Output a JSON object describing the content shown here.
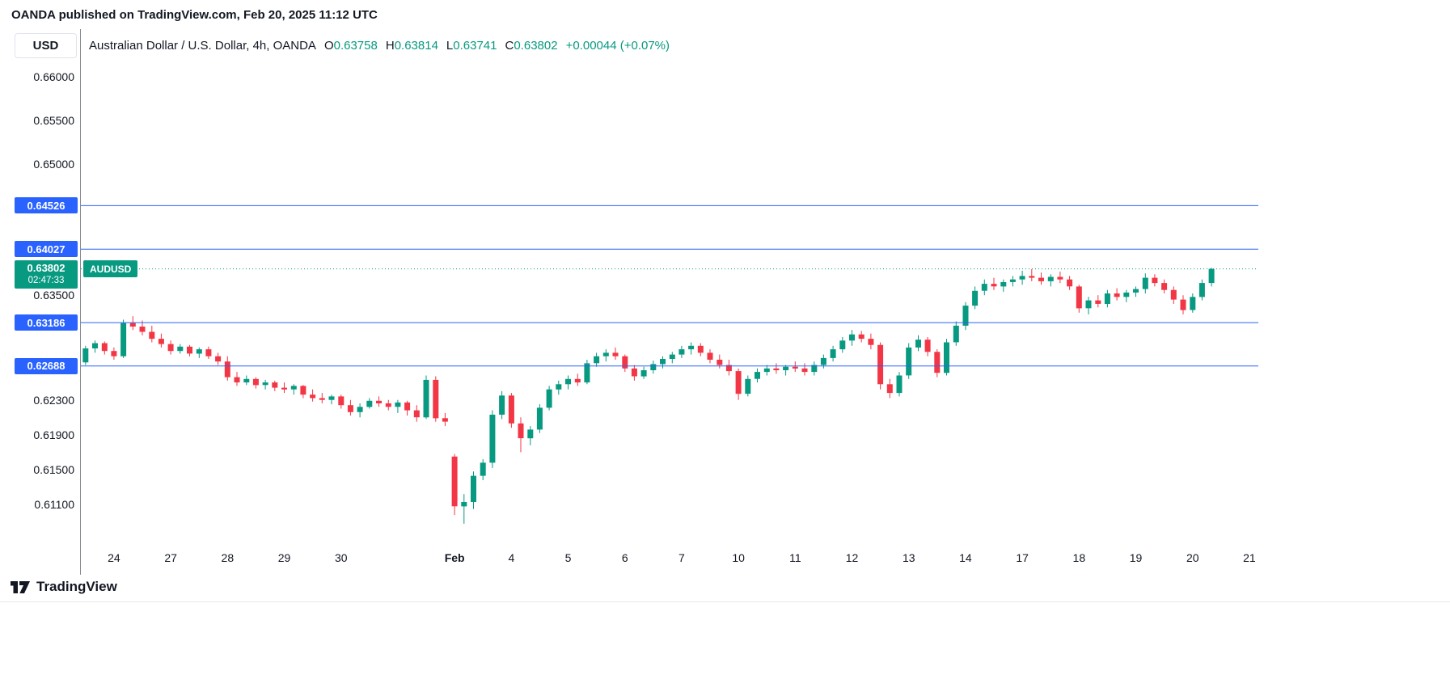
{
  "header": {
    "attribution": "OANDA published on TradingView.com, Feb 20, 2025 11:12 UTC"
  },
  "toolbar": {
    "currency_button_label": "USD"
  },
  "legend": {
    "title": "Australian Dollar / U.S. Dollar, 4h, OANDA",
    "ohlc": [
      {
        "label": "O",
        "value": "0.63758"
      },
      {
        "label": "H",
        "value": "0.63814"
      },
      {
        "label": "L",
        "value": "0.63741"
      },
      {
        "label": "C",
        "value": "0.63802"
      }
    ],
    "change": "+0.00044 (+0.07%)"
  },
  "price_axis": {
    "visible_ticks": [
      "0.66000",
      "0.65500",
      "0.65000",
      "0.63500",
      "0.62300",
      "0.61900",
      "0.61500",
      "0.61100"
    ],
    "level_badges": [
      "0.64526",
      "0.64027",
      "0.63186",
      "0.62688"
    ],
    "current": {
      "price": "0.63802",
      "countdown": "02:47:33",
      "symbol_tag": "AUDUSD"
    }
  },
  "footer": {
    "brand": "TradingView"
  },
  "colors": {
    "background": "#ffffff",
    "up": "#089981",
    "down": "#F23645",
    "level_line": "#2962FF",
    "text": "#131722",
    "axis_line": "#87898f",
    "divider": "#e7e8ea"
  },
  "chart_data": {
    "type": "candlestick",
    "title": "Australian Dollar / U.S. Dollar, 4h, OANDA",
    "symbol": "AUDUSD",
    "timeframe": "4h",
    "provider": "OANDA",
    "ohlc_current": {
      "open": 0.63758,
      "high": 0.63814,
      "low": 0.63741,
      "close": 0.63802,
      "change": 0.00044,
      "change_pct": 0.07
    },
    "current_price": 0.63802,
    "horizontal_levels": [
      0.64526,
      0.64027,
      0.63186,
      0.62688
    ],
    "price_range": [
      0.6062,
      0.6655
    ],
    "slot_width": 11.7,
    "x_labels": [
      {
        "text": "24",
        "slot": 3,
        "bold": false
      },
      {
        "text": "27",
        "slot": 9,
        "bold": false
      },
      {
        "text": "28",
        "slot": 15,
        "bold": false
      },
      {
        "text": "29",
        "slot": 21,
        "bold": false
      },
      {
        "text": "30",
        "slot": 27,
        "bold": false
      },
      {
        "text": "Feb",
        "slot": 39,
        "bold": true
      },
      {
        "text": "4",
        "slot": 45,
        "bold": false
      },
      {
        "text": "5",
        "slot": 51,
        "bold": false
      },
      {
        "text": "6",
        "slot": 57,
        "bold": false
      },
      {
        "text": "7",
        "slot": 63,
        "bold": false
      },
      {
        "text": "10",
        "slot": 69,
        "bold": false
      },
      {
        "text": "11",
        "slot": 75,
        "bold": false
      },
      {
        "text": "12",
        "slot": 81,
        "bold": false
      },
      {
        "text": "13",
        "slot": 87,
        "bold": false
      },
      {
        "text": "14",
        "slot": 93,
        "bold": false
      },
      {
        "text": "17",
        "slot": 99,
        "bold": false
      },
      {
        "text": "18",
        "slot": 105,
        "bold": false
      },
      {
        "text": "19",
        "slot": 111,
        "bold": false
      },
      {
        "text": "20",
        "slot": 117,
        "bold": false
      },
      {
        "text": "21",
        "slot": 123,
        "bold": false
      }
    ],
    "candles": [
      [
        0.6273,
        0.6292,
        0.627,
        0.6289
      ],
      [
        0.6289,
        0.6298,
        0.6284,
        0.6295
      ],
      [
        0.6295,
        0.6297,
        0.6282,
        0.6286
      ],
      [
        0.6286,
        0.629,
        0.6276,
        0.628
      ],
      [
        0.628,
        0.6322,
        0.6278,
        0.6318
      ],
      [
        0.6318,
        0.6326,
        0.631,
        0.6314
      ],
      [
        0.6314,
        0.6321,
        0.6304,
        0.6308
      ],
      [
        0.6308,
        0.6315,
        0.6296,
        0.63
      ],
      [
        0.63,
        0.6306,
        0.629,
        0.6294
      ],
      [
        0.6294,
        0.6298,
        0.6282,
        0.6286
      ],
      [
        0.6286,
        0.6294,
        0.6283,
        0.6291
      ],
      [
        0.6291,
        0.6293,
        0.628,
        0.6283
      ],
      [
        0.6283,
        0.629,
        0.6278,
        0.6288
      ],
      [
        0.6288,
        0.6291,
        0.6277,
        0.628
      ],
      [
        0.628,
        0.6284,
        0.627,
        0.6274
      ],
      [
        0.6274,
        0.628,
        0.6252,
        0.6256
      ],
      [
        0.6256,
        0.6262,
        0.6246,
        0.625
      ],
      [
        0.625,
        0.6258,
        0.6247,
        0.6254
      ],
      [
        0.6254,
        0.6256,
        0.6243,
        0.6247
      ],
      [
        0.6247,
        0.6253,
        0.6242,
        0.625
      ],
      [
        0.625,
        0.6252,
        0.624,
        0.6244
      ],
      [
        0.6244,
        0.625,
        0.6238,
        0.6242
      ],
      [
        0.6242,
        0.6248,
        0.6236,
        0.6246
      ],
      [
        0.6246,
        0.6247,
        0.6232,
        0.6236
      ],
      [
        0.6236,
        0.6242,
        0.6228,
        0.6232
      ],
      [
        0.6232,
        0.6238,
        0.6226,
        0.623
      ],
      [
        0.623,
        0.6236,
        0.6225,
        0.6234
      ],
      [
        0.6234,
        0.6236,
        0.622,
        0.6224
      ],
      [
        0.6224,
        0.623,
        0.6212,
        0.6216
      ],
      [
        0.6216,
        0.6226,
        0.621,
        0.6222
      ],
      [
        0.6222,
        0.6232,
        0.622,
        0.6229
      ],
      [
        0.6229,
        0.6234,
        0.6222,
        0.6226
      ],
      [
        0.6226,
        0.623,
        0.6218,
        0.6222
      ],
      [
        0.6222,
        0.623,
        0.6215,
        0.6227
      ],
      [
        0.6227,
        0.6229,
        0.6212,
        0.6218
      ],
      [
        0.6218,
        0.6224,
        0.6205,
        0.621
      ],
      [
        0.621,
        0.6258,
        0.6208,
        0.6253
      ],
      [
        0.6253,
        0.6257,
        0.6205,
        0.6209
      ],
      [
        0.6209,
        0.6215,
        0.62,
        0.6205
      ],
      [
        0.6165,
        0.6168,
        0.6098,
        0.6108
      ],
      [
        0.6108,
        0.6122,
        0.6088,
        0.6113
      ],
      [
        0.6113,
        0.6148,
        0.6105,
        0.6143
      ],
      [
        0.6143,
        0.6162,
        0.6138,
        0.6158
      ],
      [
        0.6158,
        0.6218,
        0.6152,
        0.6213
      ],
      [
        0.6213,
        0.624,
        0.6208,
        0.6235
      ],
      [
        0.6235,
        0.6238,
        0.6198,
        0.6203
      ],
      [
        0.6203,
        0.621,
        0.617,
        0.6186
      ],
      [
        0.6186,
        0.62,
        0.6178,
        0.6196
      ],
      [
        0.6196,
        0.6225,
        0.6192,
        0.6221
      ],
      [
        0.6221,
        0.6246,
        0.6218,
        0.6242
      ],
      [
        0.6242,
        0.6252,
        0.6236,
        0.6248
      ],
      [
        0.6248,
        0.6258,
        0.6242,
        0.6254
      ],
      [
        0.6254,
        0.626,
        0.6246,
        0.625
      ],
      [
        0.625,
        0.6276,
        0.6248,
        0.6272
      ],
      [
        0.6272,
        0.6284,
        0.6268,
        0.628
      ],
      [
        0.628,
        0.6288,
        0.6274,
        0.6284
      ],
      [
        0.6284,
        0.629,
        0.6276,
        0.628
      ],
      [
        0.628,
        0.6282,
        0.6262,
        0.6266
      ],
      [
        0.6266,
        0.627,
        0.6252,
        0.6257
      ],
      [
        0.6257,
        0.6268,
        0.6254,
        0.6264
      ],
      [
        0.6264,
        0.6275,
        0.626,
        0.6271
      ],
      [
        0.6271,
        0.628,
        0.6266,
        0.6277
      ],
      [
        0.6277,
        0.6285,
        0.6272,
        0.6282
      ],
      [
        0.6282,
        0.6292,
        0.6278,
        0.6288
      ],
      [
        0.6288,
        0.6296,
        0.6282,
        0.6292
      ],
      [
        0.6292,
        0.6295,
        0.628,
        0.6284
      ],
      [
        0.6284,
        0.6288,
        0.6272,
        0.6276
      ],
      [
        0.6276,
        0.6282,
        0.6266,
        0.627
      ],
      [
        0.627,
        0.6276,
        0.6258,
        0.6263
      ],
      [
        0.6263,
        0.6266,
        0.623,
        0.6237
      ],
      [
        0.6237,
        0.6258,
        0.6234,
        0.6254
      ],
      [
        0.6254,
        0.6266,
        0.625,
        0.6262
      ],
      [
        0.6262,
        0.627,
        0.6258,
        0.6266
      ],
      [
        0.6266,
        0.6272,
        0.626,
        0.6264
      ],
      [
        0.6264,
        0.627,
        0.6258,
        0.6268
      ],
      [
        0.6268,
        0.6274,
        0.6262,
        0.6266
      ],
      [
        0.6266,
        0.6272,
        0.6258,
        0.6262
      ],
      [
        0.6262,
        0.6274,
        0.6258,
        0.627
      ],
      [
        0.627,
        0.6282,
        0.6266,
        0.6278
      ],
      [
        0.6278,
        0.6292,
        0.6274,
        0.6288
      ],
      [
        0.6288,
        0.6302,
        0.6284,
        0.6298
      ],
      [
        0.6298,
        0.631,
        0.6292,
        0.6305
      ],
      [
        0.6305,
        0.6309,
        0.6296,
        0.63
      ],
      [
        0.63,
        0.6306,
        0.6288,
        0.6293
      ],
      [
        0.6293,
        0.6296,
        0.6242,
        0.6248
      ],
      [
        0.6248,
        0.6254,
        0.6232,
        0.6238
      ],
      [
        0.6238,
        0.6262,
        0.6234,
        0.6258
      ],
      [
        0.6258,
        0.6295,
        0.6254,
        0.629
      ],
      [
        0.629,
        0.6304,
        0.6286,
        0.6299
      ],
      [
        0.6299,
        0.6302,
        0.628,
        0.6285
      ],
      [
        0.6285,
        0.6288,
        0.6256,
        0.6261
      ],
      [
        0.6261,
        0.63,
        0.6258,
        0.6296
      ],
      [
        0.6296,
        0.632,
        0.6292,
        0.6315
      ],
      [
        0.6315,
        0.6342,
        0.631,
        0.6338
      ],
      [
        0.6338,
        0.636,
        0.6334,
        0.6355
      ],
      [
        0.6355,
        0.6368,
        0.635,
        0.6363
      ],
      [
        0.6363,
        0.637,
        0.6356,
        0.636
      ],
      [
        0.636,
        0.6368,
        0.6354,
        0.6365
      ],
      [
        0.6365,
        0.6372,
        0.636,
        0.6368
      ],
      [
        0.6368,
        0.6378,
        0.6362,
        0.6372
      ],
      [
        0.6372,
        0.638,
        0.6366,
        0.637
      ],
      [
        0.637,
        0.6376,
        0.6362,
        0.6366
      ],
      [
        0.6366,
        0.6374,
        0.636,
        0.6371
      ],
      [
        0.6371,
        0.6377,
        0.6364,
        0.6368
      ],
      [
        0.6368,
        0.6372,
        0.6356,
        0.636
      ],
      [
        0.636,
        0.6362,
        0.633,
        0.6335
      ],
      [
        0.6335,
        0.6348,
        0.6328,
        0.6344
      ],
      [
        0.6344,
        0.635,
        0.6336,
        0.634
      ],
      [
        0.634,
        0.6356,
        0.6336,
        0.6352
      ],
      [
        0.6352,
        0.6358,
        0.6344,
        0.6348
      ],
      [
        0.6348,
        0.6356,
        0.6342,
        0.6353
      ],
      [
        0.6353,
        0.636,
        0.6348,
        0.6357
      ],
      [
        0.6357,
        0.6375,
        0.6352,
        0.637
      ],
      [
        0.637,
        0.6374,
        0.636,
        0.6364
      ],
      [
        0.6364,
        0.6368,
        0.6352,
        0.6356
      ],
      [
        0.6356,
        0.636,
        0.634,
        0.6345
      ],
      [
        0.6345,
        0.635,
        0.6328,
        0.6333
      ],
      [
        0.6333,
        0.6352,
        0.633,
        0.6348
      ],
      [
        0.6348,
        0.6368,
        0.6344,
        0.6364
      ],
      [
        0.6364,
        0.63814,
        0.636,
        0.63802
      ]
    ]
  }
}
